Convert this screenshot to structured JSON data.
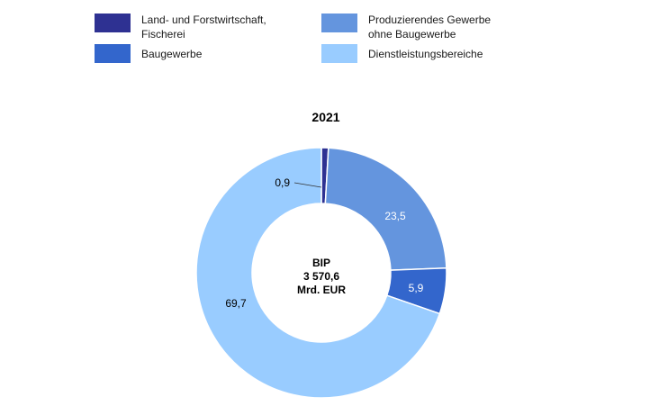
{
  "chart_data": {
    "type": "pie",
    "title": "2021",
    "center_label": [
      "BIP",
      "3 570,6",
      "Mrd. EUR"
    ],
    "legend_placement": "top",
    "series": [
      {
        "name": "Land- und Forstwirtschaft,\nFischerei",
        "value": 0.9,
        "label": "0,9",
        "color": "#2e3192"
      },
      {
        "name": "Produzierendes Gewerbe\nohne Baugewerbe",
        "value": 23.5,
        "label": "23,5",
        "color": "#6495de"
      },
      {
        "name": "Baugewerbe",
        "value": 5.9,
        "label": "5,9",
        "color": "#3366cc"
      },
      {
        "name": "Dienstleistungsbereiche",
        "value": 69.7,
        "label": "69,7",
        "color": "#99ccff"
      }
    ]
  }
}
